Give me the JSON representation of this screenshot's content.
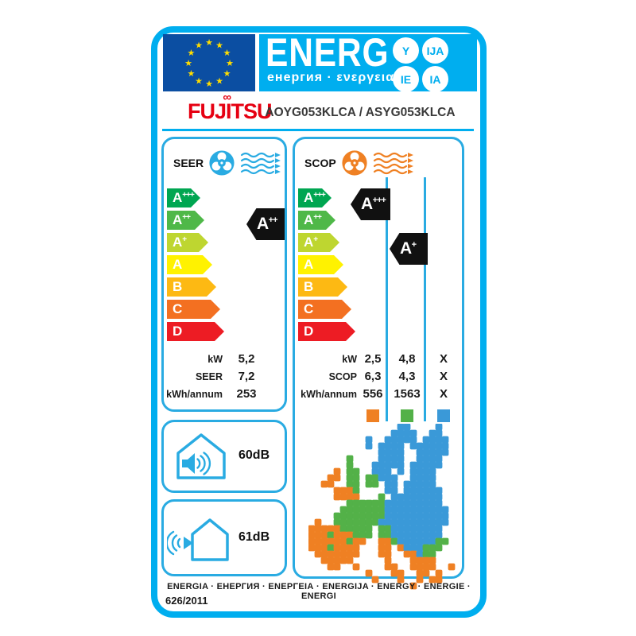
{
  "header": {
    "energ_title": "ENERG",
    "energ_subtitle": "енергия · ενεργεια",
    "suffix_circles": [
      "Y",
      "IJA",
      "IE",
      "IA"
    ]
  },
  "brand": {
    "name": "FUJITSU",
    "model": "AOYG053KLCA / ASYG053KLCA"
  },
  "rating_scale": {
    "grades": [
      {
        "label": "A",
        "sup": "+++",
        "color": "#00a651"
      },
      {
        "label": "A",
        "sup": "++",
        "color": "#4fb848"
      },
      {
        "label": "A",
        "sup": "+",
        "color": "#bed630"
      },
      {
        "label": "A",
        "sup": "",
        "color": "#fff200"
      },
      {
        "label": "B",
        "sup": "",
        "color": "#fdb913"
      },
      {
        "label": "C",
        "sup": "",
        "color": "#f37021"
      },
      {
        "label": "D",
        "sup": "",
        "color": "#ed1c24"
      }
    ]
  },
  "seer": {
    "title": "SEER",
    "indicator": {
      "label": "A",
      "sup": "++"
    },
    "rows": [
      {
        "label": "kW",
        "value": "5,2"
      },
      {
        "label": "SEER",
        "value": "7,2"
      },
      {
        "label": "kWh/annum",
        "value": "253"
      }
    ]
  },
  "scop": {
    "title": "SCOP",
    "indicators": [
      {
        "label": "A",
        "sup": "+++",
        "zone": "warmer"
      },
      {
        "label": "A",
        "sup": "+",
        "zone": "average"
      }
    ],
    "row_labels": [
      "kW",
      "SCOP",
      "kWh/annum"
    ],
    "zones": [
      {
        "name": "warmer",
        "color": "#ef8023",
        "values": {
          "kw": "2,5",
          "scop": "6,3",
          "kwh": "556"
        }
      },
      {
        "name": "average",
        "color": "#53b148",
        "values": {
          "kw": "4,8",
          "scop": "4,3",
          "kwh": "1563"
        }
      },
      {
        "name": "colder",
        "color": "#3a99d8",
        "values": {
          "kw": "X",
          "scop": "X",
          "kwh": "X"
        }
      }
    ]
  },
  "noise": {
    "indoor_db": "60dB",
    "outdoor_db": "61dB"
  },
  "footer": {
    "energia_line": "ENERGIA · ЕНЕРГИЯ · ΕΝΕΡΓΕΙΑ · ENERGIJA · ENERGY · ENERGIE · ENERGI",
    "regulation": "626/2011"
  },
  "colors": {
    "accent_blue": "#00aeef",
    "box_blue": "#29abe2",
    "eu_flag_blue": "#0b4ea2",
    "star_yellow": "#ffdd00",
    "fujitsu_red": "#e60012",
    "indicator_black": "#111111"
  }
}
